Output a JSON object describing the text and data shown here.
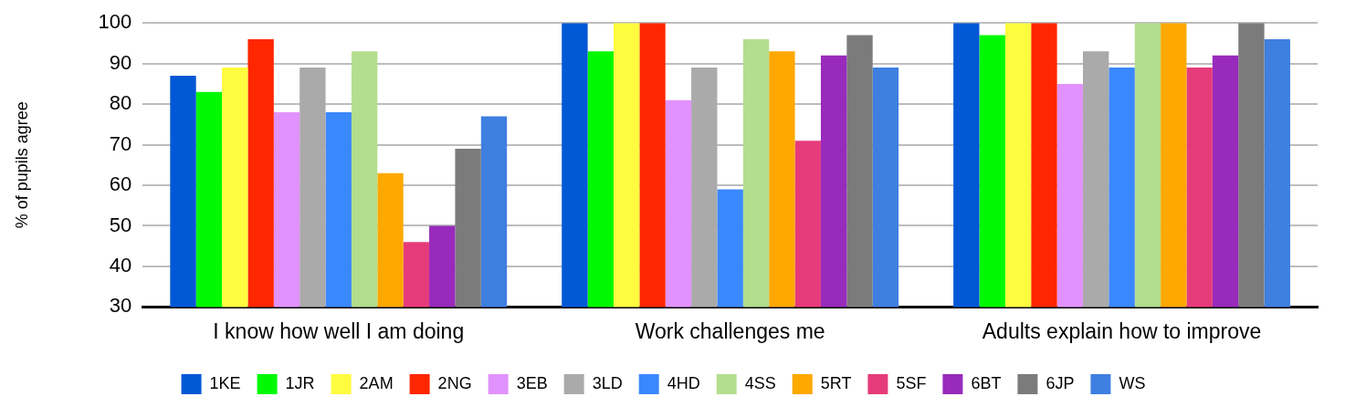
{
  "chart_data": {
    "type": "bar",
    "ylabel": "% of pupils agree",
    "categories": [
      "I know how well I am doing",
      "Work challenges me",
      "Adults explain how to improve"
    ],
    "ylim": [
      30,
      100
    ],
    "yticks": [
      30,
      40,
      50,
      60,
      70,
      80,
      90,
      100
    ],
    "grid": "y",
    "legend": "bottom",
    "series": [
      {
        "name": "1KE",
        "color": "#0358d6",
        "values": [
          87,
          100,
          100
        ]
      },
      {
        "name": "1JR",
        "color": "#00f900",
        "values": [
          83,
          93,
          97
        ]
      },
      {
        "name": "2AM",
        "color": "#fffb3f",
        "values": [
          89,
          100,
          100
        ]
      },
      {
        "name": "2NG",
        "color": "#ff2600",
        "values": [
          96,
          100,
          100
        ]
      },
      {
        "name": "3EB",
        "color": "#e292fd",
        "values": [
          78,
          81,
          85
        ]
      },
      {
        "name": "3LD",
        "color": "#aaaaaa",
        "values": [
          89,
          89,
          93
        ]
      },
      {
        "name": "4HD",
        "color": "#3a88fd",
        "values": [
          78,
          59,
          89
        ]
      },
      {
        "name": "4SS",
        "color": "#b3de8e",
        "values": [
          93,
          96,
          100
        ]
      },
      {
        "name": "5RT",
        "color": "#fea800",
        "values": [
          63,
          93,
          100
        ]
      },
      {
        "name": "5SF",
        "color": "#e63b7a",
        "values": [
          46,
          71,
          89
        ]
      },
      {
        "name": "6BT",
        "color": "#982abc",
        "values": [
          50,
          92,
          92
        ]
      },
      {
        "name": "6JP",
        "color": "#7b7b7b",
        "values": [
          69,
          97,
          100
        ]
      },
      {
        "name": "WS",
        "color": "#3e7fe0",
        "values": [
          77,
          89,
          96
        ]
      }
    ]
  }
}
